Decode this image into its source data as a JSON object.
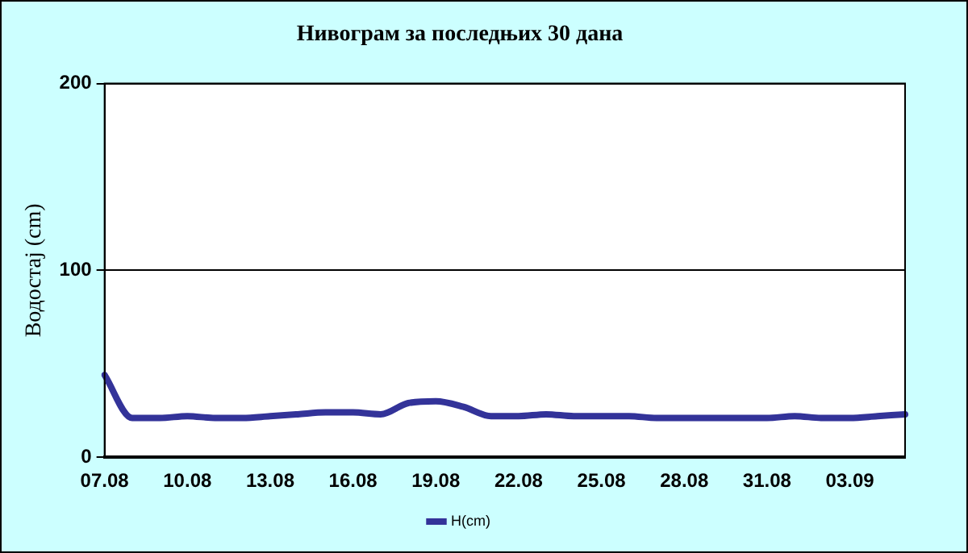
{
  "chart_data": {
    "type": "line",
    "title": "Нивограм за последњих 30 дана",
    "ylabel": "Водостај (cm)",
    "categories": [
      "07.08",
      null,
      null,
      "10.08",
      null,
      null,
      "13.08",
      null,
      null,
      "16.08",
      null,
      null,
      "19.08",
      null,
      null,
      "22.08",
      null,
      null,
      "25.08",
      null,
      null,
      "28.08",
      null,
      null,
      "31.08",
      null,
      null,
      "03.09",
      null,
      null
    ],
    "series": [
      {
        "name": "H(cm)",
        "color": "#333399",
        "values": [
          44,
          21,
          21,
          22,
          21,
          21,
          22,
          23,
          24,
          24,
          23,
          29,
          30,
          27,
          22,
          22,
          23,
          22,
          22,
          22,
          21,
          21,
          21,
          21,
          21,
          22,
          21,
          21,
          22,
          23
        ]
      }
    ],
    "ylim": [
      0,
      200
    ],
    "yticks": [
      0,
      100,
      200
    ],
    "grid": "y",
    "legend": "bottom",
    "marker": "none",
    "line_style": "solid"
  }
}
